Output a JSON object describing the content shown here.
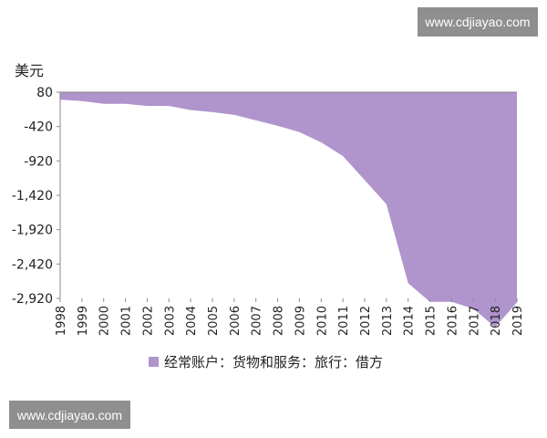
{
  "watermark_top": "www.cdjiayao.com",
  "watermark_bottom": "www.cdjiayao.com",
  "chart_data": {
    "type": "area",
    "title": "",
    "xlabel": "",
    "ylabel": "美元",
    "x": [
      "1998",
      "1999",
      "2000",
      "2001",
      "2002",
      "2003",
      "2004",
      "2005",
      "2006",
      "2007",
      "2008",
      "2009",
      "2010",
      "2011",
      "2012",
      "2013",
      "2014",
      "2015",
      "2016",
      "2017",
      "2018",
      "2019"
    ],
    "series": [
      {
        "name": "经常账户：货物和服务：旅行：借方",
        "values": [
          -30,
          -50,
          -90,
          -90,
          -120,
          -120,
          -180,
          -210,
          -250,
          -330,
          -410,
          -500,
          -650,
          -850,
          -1200,
          -1550,
          -2700,
          -2970,
          -2970,
          -3070,
          -3340,
          -2980
        ],
        "color": "#b094cc"
      }
    ],
    "yticks": [
      "80",
      "-420",
      "-920",
      "-1,420",
      "-1,920",
      "-2,420",
      "-2,920"
    ],
    "ytick_values": [
      80,
      -420,
      -920,
      -1420,
      -1920,
      -2420,
      -2920
    ],
    "ylim": [
      -2920,
      80
    ],
    "grid": false,
    "legend_position": "bottom"
  }
}
